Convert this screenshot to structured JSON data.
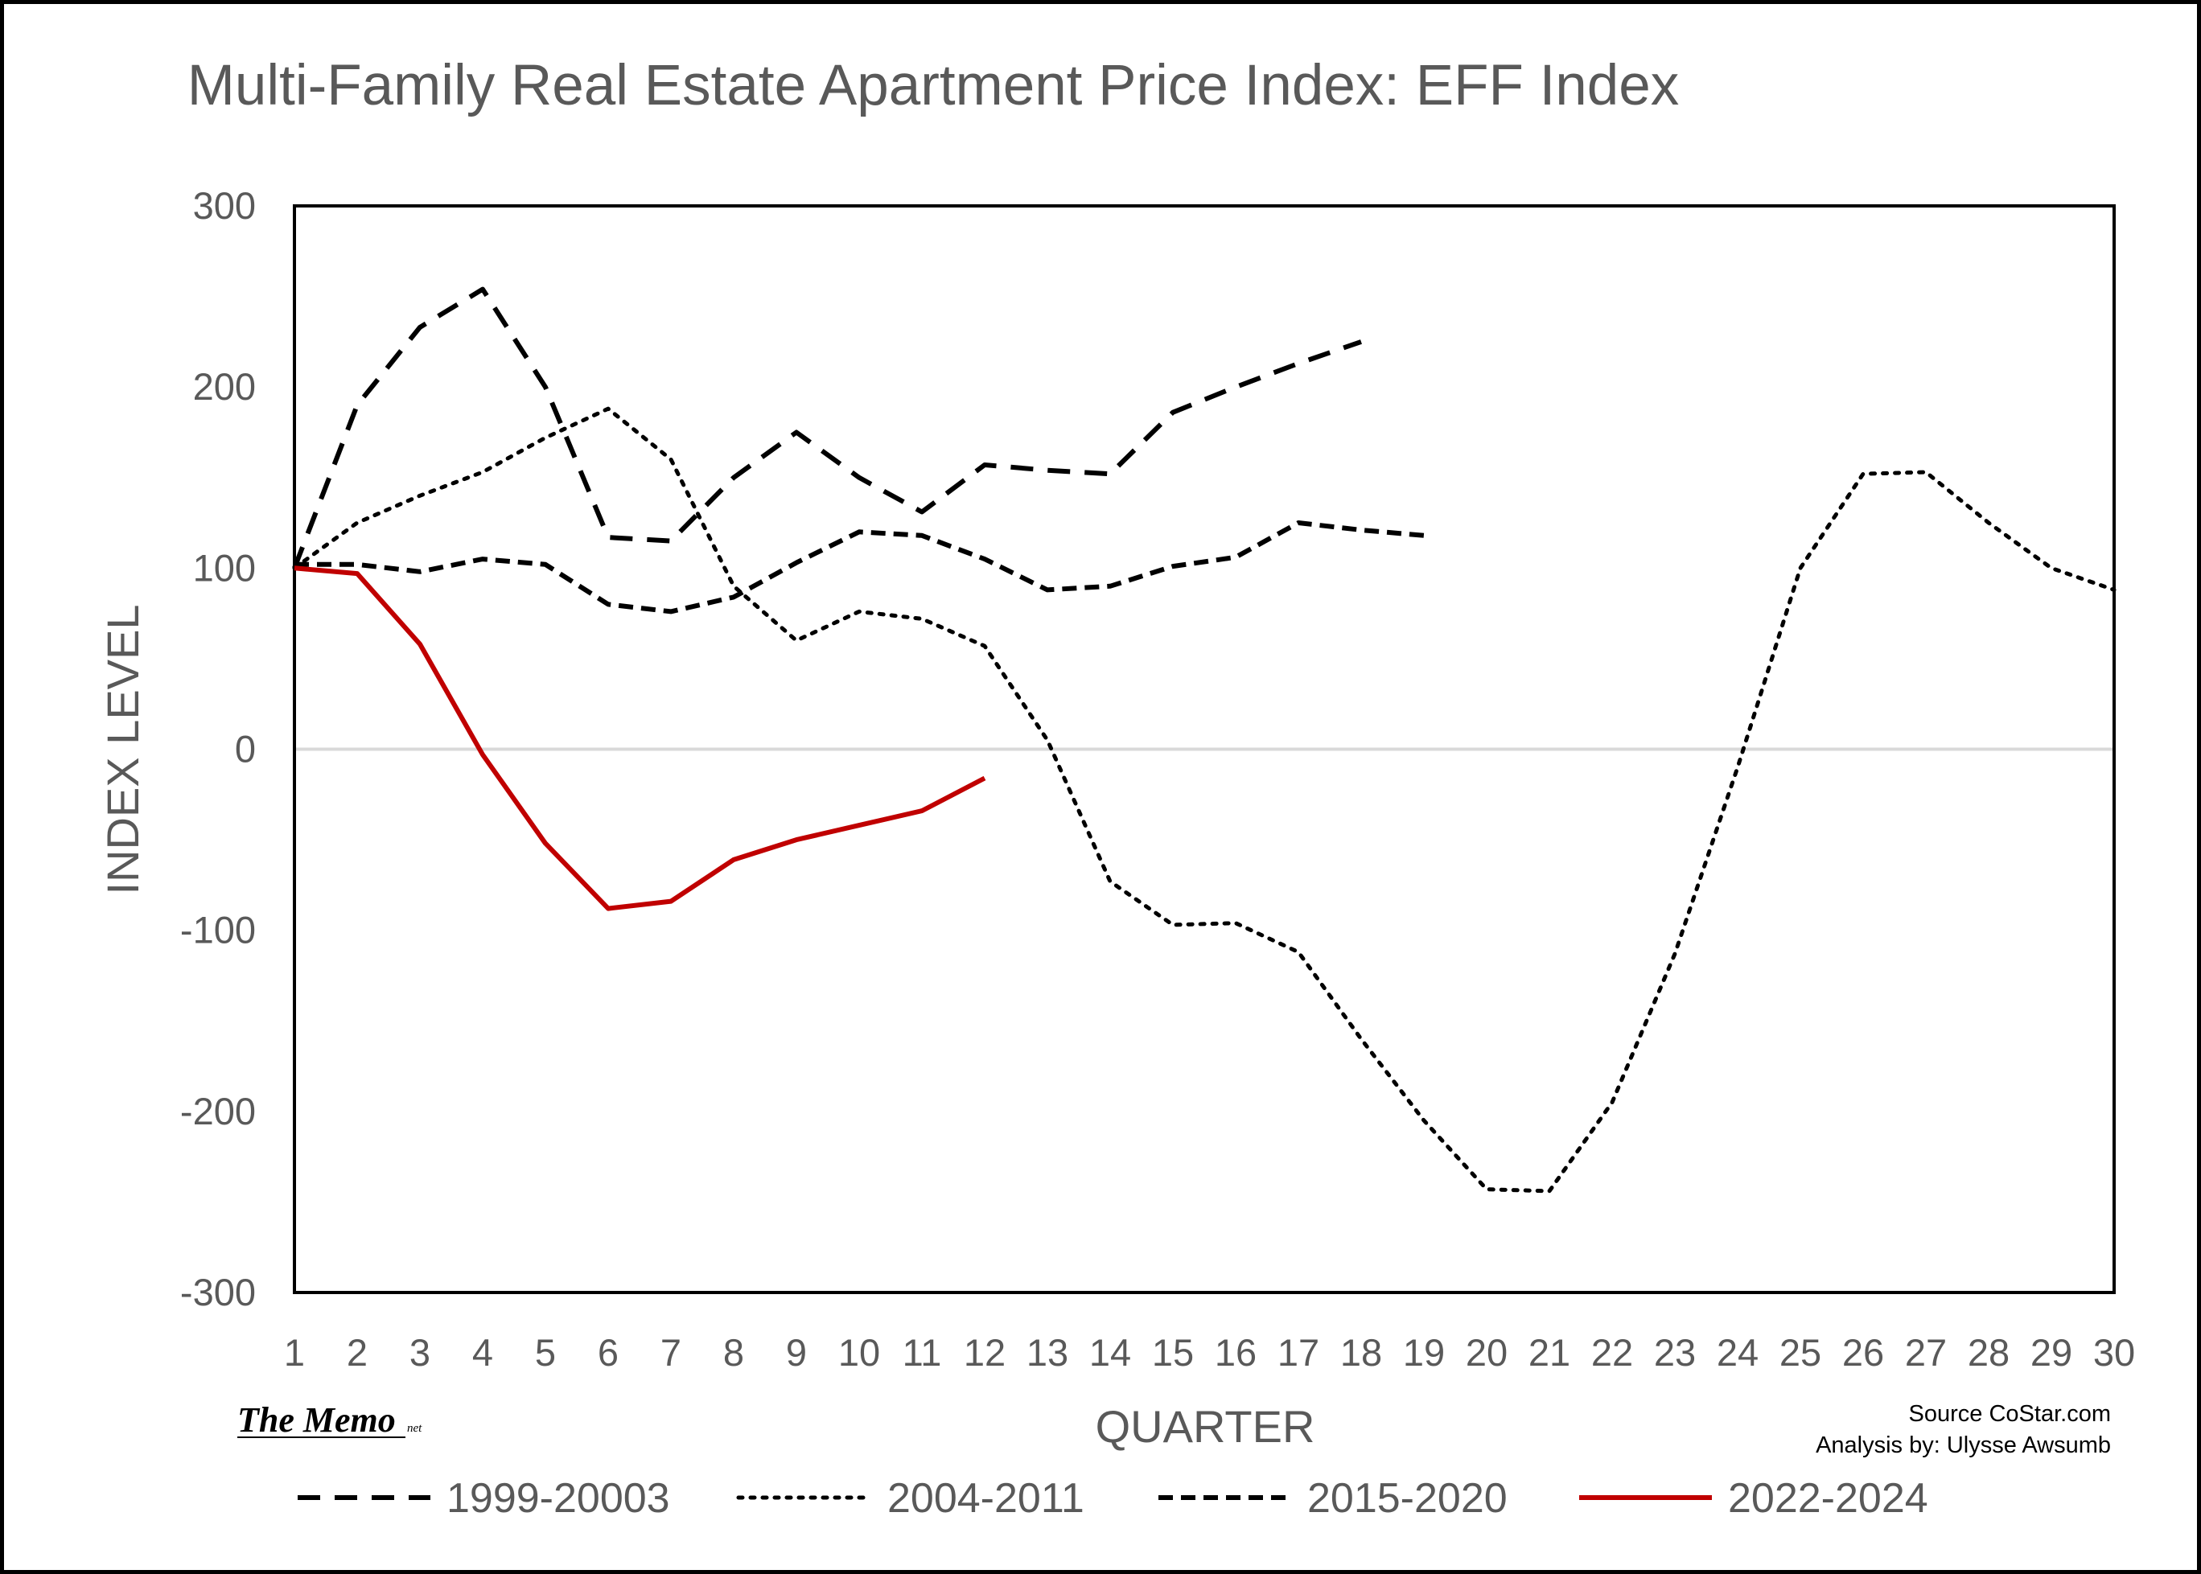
{
  "chart_data": {
    "type": "line",
    "title": "Multi-Family Real Estate Apartment Price Index: EFF Index",
    "xlabel": "QUARTER",
    "ylabel": "INDEX LEVEL",
    "xlim": [
      1,
      30
    ],
    "ylim": [
      -300,
      300
    ],
    "x_ticks": [
      "1",
      "2",
      "3",
      "4",
      "5",
      "6",
      "7",
      "8",
      "9",
      "10",
      "11",
      "12",
      "13",
      "14",
      "15",
      "16",
      "17",
      "18",
      "19",
      "20",
      "21",
      "22",
      "23",
      "24",
      "25",
      "26",
      "27",
      "28",
      "29",
      "30"
    ],
    "y_ticks": [
      "300",
      "200",
      "100",
      "0",
      "-100",
      "-200",
      "-300"
    ],
    "zero_line": true,
    "grid": false,
    "legend_position": "bottom",
    "series": [
      {
        "name": "1999-20003",
        "style": "dashed-long",
        "color": "#000000",
        "x": [
          1,
          2,
          3,
          4,
          5,
          6,
          7,
          8,
          9,
          10,
          11,
          12,
          13,
          14,
          15,
          16,
          17,
          18
        ],
        "values": [
          100,
          190,
          233,
          254,
          200,
          117,
          115,
          150,
          175,
          150,
          131,
          157,
          154,
          152,
          186,
          200,
          213,
          225
        ]
      },
      {
        "name": "2004-2011",
        "style": "dotted",
        "color": "#000000",
        "x": [
          1,
          2,
          3,
          4,
          5,
          6,
          7,
          8,
          9,
          10,
          11,
          12,
          13,
          14,
          15,
          16,
          17,
          18,
          19,
          20,
          21,
          22,
          23,
          24,
          25,
          26,
          27,
          28,
          29,
          30
        ],
        "values": [
          100,
          125,
          140,
          153,
          172,
          188,
          160,
          90,
          60,
          76,
          72,
          57,
          5,
          -73,
          -97,
          -96,
          -112,
          -160,
          -205,
          -243,
          -244,
          -195,
          -113,
          -10,
          100,
          152,
          153,
          125,
          100,
          88
        ]
      },
      {
        "name": "2015-2020",
        "style": "dashed-short",
        "color": "#000000",
        "x": [
          1,
          2,
          3,
          4,
          5,
          6,
          7,
          8,
          9,
          10,
          11,
          12,
          13,
          14,
          15,
          16,
          17,
          18,
          19
        ],
        "values": [
          102,
          102,
          98,
          105,
          102,
          80,
          76,
          84,
          103,
          120,
          118,
          105,
          88,
          90,
          101,
          106,
          125,
          121,
          118
        ]
      },
      {
        "name": "2022-2024",
        "style": "solid",
        "color": "#C00000",
        "x": [
          1,
          2,
          3,
          4,
          5,
          6,
          7,
          8,
          9,
          10,
          11,
          12
        ],
        "values": [
          100,
          97,
          58,
          -3,
          -52,
          -88,
          -84,
          -61,
          -50,
          -42,
          -34,
          -16
        ]
      }
    ]
  },
  "footer": {
    "brand": "The Memo",
    "brand_suffix": "net",
    "source": "Source CoStar.com",
    "analysis": "Analysis by: Ulysse Awsumb"
  }
}
